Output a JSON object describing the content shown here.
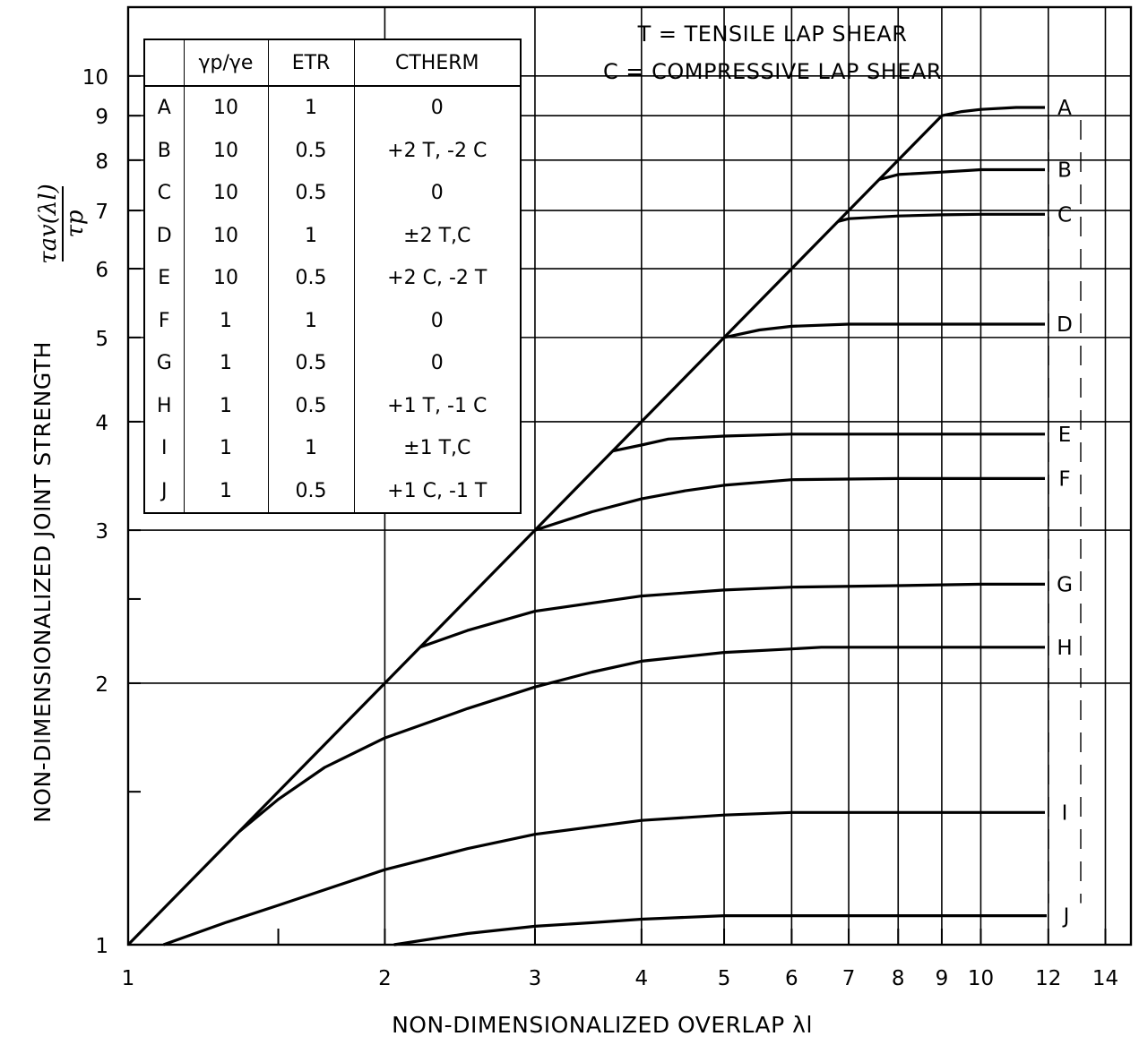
{
  "chart_data": {
    "type": "line",
    "title": "",
    "xlabel": "NON-DIMENSIONALIZED OVERLAP λl",
    "ylabel": "NON-DIMENSIONALIZED JOINT STRENGTH",
    "ylabel_formula": {
      "numerator": "τav(λl)",
      "denominator": "τp"
    },
    "x_scale": "log",
    "y_scale": "log",
    "xlim": [
      1,
      15
    ],
    "ylim": [
      1,
      12
    ],
    "x_ticks": [
      1,
      2,
      3,
      4,
      5,
      6,
      7,
      8,
      9,
      10,
      12,
      14
    ],
    "x_tick_labels": [
      "1",
      "2",
      "3",
      "4",
      "5",
      "6",
      "7",
      "8",
      "9",
      "10",
      "12",
      "14"
    ],
    "y_ticks": [
      1,
      2,
      3,
      4,
      5,
      6,
      7,
      8,
      9,
      10
    ],
    "y_tick_labels": [
      "1",
      "2",
      "3",
      "4",
      "5",
      "6",
      "7",
      "8",
      "9",
      "10"
    ],
    "y_minor_ticks": [
      1.5,
      2.5
    ],
    "grid": true,
    "annotations": [
      "T = TENSILE LAP SHEAR",
      "C = COMPRESSIVE LAP SHEAR"
    ],
    "diagonal": {
      "x": [
        1,
        9
      ],
      "y": [
        1,
        9
      ]
    },
    "series": [
      {
        "name": "A",
        "x": [
          9,
          9.5,
          10,
          11,
          12,
          15
        ],
        "y": [
          9,
          9.1,
          9.15,
          9.2,
          9.2,
          9.2
        ]
      },
      {
        "name": "B",
        "x": [
          7.6,
          8,
          9,
          10,
          11,
          12,
          15
        ],
        "y": [
          7.6,
          7.7,
          7.75,
          7.8,
          7.8,
          7.8,
          7.8
        ]
      },
      {
        "name": "C",
        "x": [
          6.8,
          7,
          8,
          9,
          10,
          12,
          15
        ],
        "y": [
          6.8,
          6.85,
          6.9,
          6.92,
          6.93,
          6.93,
          6.93
        ]
      },
      {
        "name": "D",
        "x": [
          5,
          5.5,
          6,
          7,
          8,
          10,
          12,
          15
        ],
        "y": [
          5,
          5.1,
          5.15,
          5.18,
          5.18,
          5.18,
          5.18,
          5.18
        ]
      },
      {
        "name": "E",
        "x": [
          3.7,
          4,
          4.3,
          5,
          6,
          8,
          10,
          12,
          15
        ],
        "y": [
          3.7,
          3.76,
          3.82,
          3.85,
          3.87,
          3.87,
          3.87,
          3.87,
          3.87
        ]
      },
      {
        "name": "F",
        "x": [
          3,
          3.5,
          4,
          4.5,
          5,
          6,
          8,
          10,
          12,
          15
        ],
        "y": [
          3,
          3.15,
          3.26,
          3.33,
          3.38,
          3.43,
          3.44,
          3.44,
          3.44,
          3.44
        ]
      },
      {
        "name": "G",
        "x": [
          2.2,
          2.5,
          3,
          4,
          5,
          6,
          8,
          10,
          12,
          15
        ],
        "y": [
          2.2,
          2.3,
          2.42,
          2.52,
          2.56,
          2.58,
          2.59,
          2.6,
          2.6,
          2.6
        ]
      },
      {
        "name": "H",
        "x": [
          1.35,
          1.5,
          1.7,
          2,
          2.5,
          3,
          3.5,
          4,
          5,
          6,
          6.5,
          8,
          10,
          12,
          15
        ],
        "y": [
          1.35,
          1.47,
          1.6,
          1.73,
          1.87,
          1.98,
          2.06,
          2.12,
          2.17,
          2.19,
          2.2,
          2.2,
          2.2,
          2.2,
          2.2
        ]
      },
      {
        "name": "I",
        "x": [
          1.1,
          1.3,
          1.5,
          2,
          2.5,
          3,
          4,
          5,
          6,
          8,
          10,
          12,
          15
        ],
        "y": [
          1,
          1.06,
          1.11,
          1.22,
          1.29,
          1.34,
          1.39,
          1.41,
          1.42,
          1.42,
          1.42,
          1.42,
          1.42
        ]
      },
      {
        "name": "J",
        "x": [
          2.05,
          2.5,
          3,
          3.5,
          4,
          5,
          6,
          8,
          10,
          12,
          15
        ],
        "y": [
          1,
          1.03,
          1.05,
          1.06,
          1.07,
          1.08,
          1.08,
          1.08,
          1.08,
          1.08,
          1.08
        ]
      }
    ],
    "legend_table": {
      "headers": [
        "",
        "γp/γe",
        "ETR",
        "CTHERM"
      ],
      "rows": [
        [
          "A",
          "10",
          "1",
          "0"
        ],
        [
          "B",
          "10",
          "0.5",
          "+2 T, -2 C"
        ],
        [
          "C",
          "10",
          "0.5",
          "0"
        ],
        [
          "D",
          "10",
          "1",
          "±2 T,C"
        ],
        [
          "E",
          "10",
          "0.5",
          "+2 C, -2 T"
        ],
        [
          "F",
          "1",
          "1",
          "0"
        ],
        [
          "G",
          "1",
          "0.5",
          "0"
        ],
        [
          "H",
          "1",
          "0.5",
          "+1 T, -1 C"
        ],
        [
          "I",
          "1",
          "1",
          "±1 T,C"
        ],
        [
          "J",
          "1",
          "0.5",
          "+1 C, -1 T"
        ]
      ]
    }
  }
}
